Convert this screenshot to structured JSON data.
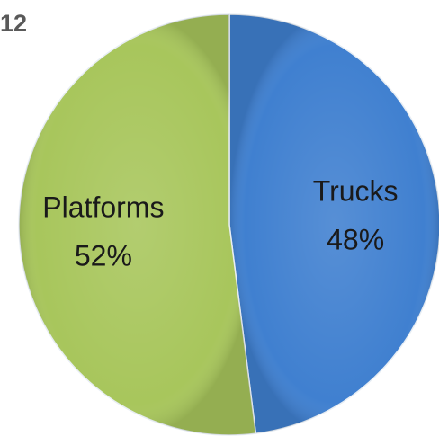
{
  "chart_data": {
    "type": "pie",
    "title": "12",
    "categories": [
      "Trucks",
      "Platforms"
    ],
    "values": [
      48,
      52
    ],
    "value_labels": [
      "48%",
      "52%"
    ],
    "colors": [
      "#4080d0",
      "#a8c65c"
    ]
  }
}
